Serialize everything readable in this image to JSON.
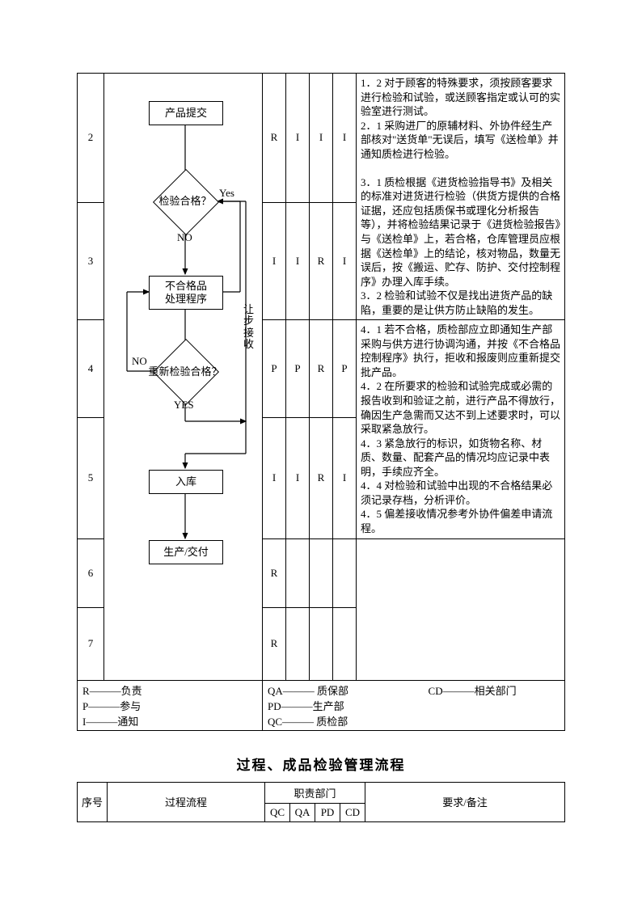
{
  "rows": [
    {
      "sn": "2",
      "flow_label": "产品提交",
      "raci": [
        "R",
        "I",
        "I",
        "I"
      ],
      "note": "1．2 对于顾客的特殊要求，须按顾客要求进行检验和试验，或送顾客指定或认可的实验室进行测试。\n2．1 采购进厂的原辅材料、外协件经生产部核对\"送货单\"无误后，填写《送检单》并通知质检进行检验。"
    },
    {
      "sn": "3",
      "flow_label": "检验合格？",
      "yes": "Yes",
      "no": "NO",
      "raci": [
        "I",
        "I",
        "R",
        "I"
      ],
      "note": "3．1 质检根据《进货检验指导书》及相关的标准对进货进行检验（供货方提供的合格证据，还应包括质保书或理化分析报告等），并将检验结果记录于《进货检验报告》与《送检单》上，若合格，仓库管理员应根据《送检单》上的结论，核对物品，数量无误后，按《搬运、贮存、防护、交付控制程序》办理入库手续。\n3．2 检验和试验不仅是找出进货产品的缺陷，重要的是让供方防止缺陷的发生。"
    },
    {
      "sn": "4",
      "flow_label": "不合格品\n处理程序",
      "side": "让步接收",
      "raci": [
        "P",
        "P",
        "R",
        "P"
      ],
      "note": "4．1 若不合格，质检部应立即通知生产部采购与供方进行协调沟通，并按《不合格品控制程序》执行，拒收和报废则应重新提交批产品。\n4．2 在所要求的检验和试验完成或必需的报告收到和验证之前，进行产品不得放行，确因生产急需而又达不到上述要求时，可以采取紧急放行。"
    },
    {
      "sn": "5",
      "flow_label": "重新检验合格？",
      "yes": "YES",
      "no": "NO",
      "raci": [
        "I",
        "I",
        "R",
        "I"
      ],
      "note": "4．3 紧急放行的标识，如货物名称、材质、数量、配套产品的情况均应记录中表明，手续应齐全。\n4．4 对检验和试验中出现的不合格结果必须记录存档，分析评价。\n4．5 偏差接收情况参考外协件偏差申请流程。"
    },
    {
      "sn": "6",
      "flow_label": "入库",
      "raci": [
        "R",
        "",
        "",
        ""
      ],
      "note": ""
    },
    {
      "sn": "7",
      "flow_label": "生产/交付",
      "raci": [
        "R",
        "",
        "",
        ""
      ],
      "note": ""
    }
  ],
  "legend": {
    "left": [
      "R———负责",
      "P———参与",
      "I———通知"
    ],
    "mid": [
      "QA——— 质保部",
      "PD———生产部",
      "QC——— 质检部"
    ],
    "right": "CD———相关部门"
  },
  "title2": "过程、成品检验管理流程",
  "hdr": {
    "sn": "序号",
    "flow": "过程流程",
    "dept": "职责部门",
    "cols": [
      "QC",
      "QA",
      "PD",
      "CD"
    ],
    "note": "要求/备注"
  },
  "flowchart": {
    "border_color": "#000000",
    "line_width": 1.2,
    "background": "#ffffff",
    "font_size": 13
  }
}
